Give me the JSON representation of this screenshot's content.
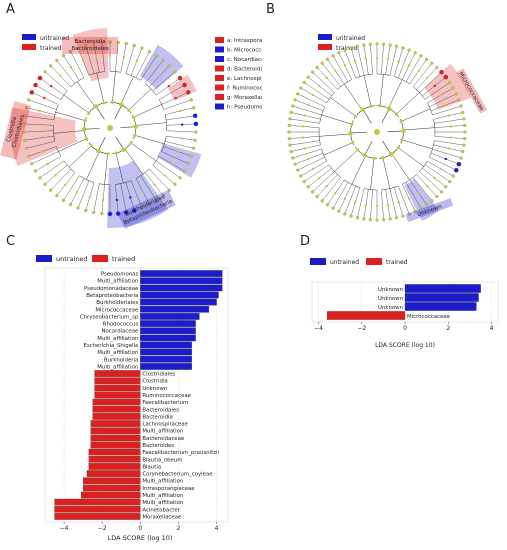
{
  "panels": {
    "A": "A",
    "B": "B",
    "C": "C",
    "D": "D"
  },
  "legend": {
    "untrained": "untrained",
    "trained": "trained"
  },
  "colors": {
    "untrained": "#1c1ccd",
    "trained": "#dc1f1f",
    "node": "#c6c63a",
    "tree_line": "#333333"
  },
  "cladogram_a": {
    "clade_labels": [
      {
        "text": "Bacteroidia\nBacteroidales",
        "color": "trained"
      },
      {
        "text": "Clostridia\nClostridiales",
        "color": "trained"
      },
      {
        "text": "Burkholderiales\nBetaproteobacteria",
        "color": "untrained"
      }
    ],
    "key_items": [
      {
        "text": "a: Intrasporangiaceae",
        "color": "trained"
      },
      {
        "text": "b: Micrococcaceae",
        "color": "untrained"
      },
      {
        "text": "c: Nocardiaceae",
        "color": "untrained"
      },
      {
        "text": "d: Bacteroidaceae",
        "color": "trained"
      },
      {
        "text": "e: Lachnospiraceae",
        "color": "trained"
      },
      {
        "text": "f: Ruminococcaceae",
        "color": "trained"
      },
      {
        "text": "g: Moraxellaceae",
        "color": "trained"
      },
      {
        "text": "h: Pseudomonadaceae",
        "color": "untrained"
      }
    ]
  },
  "cladogram_b": {
    "clade_labels": [
      {
        "text": "Micrococcaceae",
        "color": "trained"
      },
      {
        "text": "Unknown",
        "color": "untrained"
      }
    ]
  },
  "chart_data": [
    {
      "panel": "C",
      "type": "bar",
      "orientation": "horizontal",
      "xlabel": "LDA SCORE (log 10)",
      "xlim": [
        -5,
        4.6
      ],
      "xticks": [
        -4,
        -2,
        0,
        2,
        4
      ],
      "series": [
        {
          "name": "untrained",
          "color": "#1c1ccd"
        },
        {
          "name": "trained",
          "color": "#dc1f1f"
        }
      ],
      "bars": [
        {
          "label": "Pseudomonas",
          "value": 4.3,
          "group": "untrained"
        },
        {
          "label": "Multi_affiliation",
          "value": 4.3,
          "group": "untrained"
        },
        {
          "label": "Pseudomonadaceae",
          "value": 4.3,
          "group": "untrained"
        },
        {
          "label": "Betaproteobacteria",
          "value": 4.1,
          "group": "untrained"
        },
        {
          "label": "Burkholderiales",
          "value": 4.0,
          "group": "untrained"
        },
        {
          "label": "Micrococcaceae",
          "value": 3.6,
          "group": "untrained"
        },
        {
          "label": "Chryseobacterium_sp",
          "value": 3.1,
          "group": "untrained"
        },
        {
          "label": "Rhodococcus",
          "value": 2.9,
          "group": "untrained"
        },
        {
          "label": "Nocardiaceae",
          "value": 2.9,
          "group": "untrained"
        },
        {
          "label": "Multi_affiliation",
          "value": 2.9,
          "group": "untrained"
        },
        {
          "label": "Escherichia_Shigella",
          "value": 2.7,
          "group": "untrained"
        },
        {
          "label": "Multi_affiliation",
          "value": 2.7,
          "group": "untrained"
        },
        {
          "label": "Burkholderia",
          "value": 2.7,
          "group": "untrained"
        },
        {
          "label": "Multi_affiliation",
          "value": 2.7,
          "group": "untrained"
        },
        {
          "label": "Clostridiales",
          "value": -2.4,
          "group": "trained"
        },
        {
          "label": "Clostridia",
          "value": -2.4,
          "group": "trained"
        },
        {
          "label": "Unknown",
          "value": -2.4,
          "group": "trained"
        },
        {
          "label": "Ruminococcaceae",
          "value": -2.4,
          "group": "trained"
        },
        {
          "label": "Faecalibacterium",
          "value": -2.5,
          "group": "trained"
        },
        {
          "label": "Bacteroidales",
          "value": -2.5,
          "group": "trained"
        },
        {
          "label": "Bacteroidia",
          "value": -2.5,
          "group": "trained"
        },
        {
          "label": "Lachnospiraceae",
          "value": -2.6,
          "group": "trained"
        },
        {
          "label": "Multi_affiliation",
          "value": -2.6,
          "group": "trained"
        },
        {
          "label": "Bacteroidaceae",
          "value": -2.6,
          "group": "trained"
        },
        {
          "label": "Bacteroides",
          "value": -2.6,
          "group": "trained"
        },
        {
          "label": "Faecalibacterium_prausnitzii",
          "value": -2.7,
          "group": "trained"
        },
        {
          "label": "Blautia_obeum",
          "value": -2.7,
          "group": "trained"
        },
        {
          "label": "Blautia",
          "value": -2.7,
          "group": "trained"
        },
        {
          "label": "Corynebacterium_coyleae",
          "value": -2.8,
          "group": "trained"
        },
        {
          "label": "Multi_affiliation",
          "value": -3.0,
          "group": "trained"
        },
        {
          "label": "Intrasporangiaceae",
          "value": -3.0,
          "group": "trained"
        },
        {
          "label": "Multi_affiliation",
          "value": -3.1,
          "group": "trained"
        },
        {
          "label": "Multi_affiliation",
          "value": -4.5,
          "group": "trained"
        },
        {
          "label": "Acinetobacter",
          "value": -4.5,
          "group": "trained"
        },
        {
          "label": "Moraxellaceae",
          "value": -4.5,
          "group": "trained"
        }
      ]
    },
    {
      "panel": "D",
      "type": "bar",
      "orientation": "horizontal",
      "xlabel": "LDA SCORE (log 10)",
      "xlim": [
        -4.3,
        4.3
      ],
      "xticks": [
        -4,
        -2,
        0,
        2,
        4
      ],
      "series": [
        {
          "name": "untrained",
          "color": "#1c1ccd"
        },
        {
          "name": "trained",
          "color": "#dc1f1f"
        }
      ],
      "bars": [
        {
          "label": "Unknown",
          "value": 3.5,
          "group": "untrained"
        },
        {
          "label": "Unknown",
          "value": 3.4,
          "group": "untrained"
        },
        {
          "label": "Unknown",
          "value": 3.3,
          "group": "untrained"
        },
        {
          "label": "Micrococcaceae",
          "value": -3.6,
          "group": "trained"
        }
      ]
    }
  ]
}
